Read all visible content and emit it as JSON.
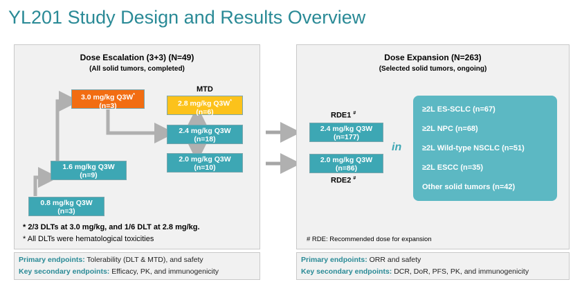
{
  "title": "YL201 Study Design and Results Overview",
  "escalation": {
    "heading": "Dose Escalation (3+3)  (N=49)",
    "subheading": "(All solid tumors, completed)",
    "mtd_label": "MTD",
    "doses": [
      {
        "dose": "0.8 mg/kg Q3W",
        "n": "(n=3)"
      },
      {
        "dose": "1.6 mg/kg Q3W",
        "n": "(n=9)"
      },
      {
        "dose": "3.0 mg/kg Q3W",
        "n": "(n=3)",
        "mark": "*"
      },
      {
        "dose": "2.8 mg/kg Q3W",
        "n": "(n=6)",
        "mark": "*"
      },
      {
        "dose": "2.4 mg/kg Q3W",
        "n": "(n=18)"
      },
      {
        "dose": "2.0 mg/kg Q3W",
        "n": "(n=10)"
      }
    ],
    "note1": "*  2/3 DLTs  at 3.0 mg/kg, and 1/6 DLT at 2.8 mg/kg.",
    "note2": "*  All DLTs  were hematological toxicities",
    "primary_label": "Primary endpoints:",
    "primary_text": "Tolerability (DLT & MTD), and safety",
    "secondary_label": "Key secondary endpoints:",
    "secondary_text": "Efficacy, PK, and immunogenicity"
  },
  "expansion": {
    "heading": "Dose Expansion (N=263)",
    "subheading": "(Selected solid tumors, ongoing)",
    "rde1_label": "RDE1",
    "rde1_mark": "#",
    "rde1": {
      "dose": "2.4 mg/kg Q3W",
      "n": "(n=177)"
    },
    "rde2": {
      "dose": "2.0 mg/kg Q3W",
      "n": "(n=86)"
    },
    "rde2_label": "RDE2",
    "rde2_mark": "#",
    "in_label": "in",
    "populations": [
      "≥2L ES-SCLC (n=67)",
      "≥2L NPC (n=68)",
      "≥2L Wild-type NSCLC (n=51)",
      "≥2L ESCC (n=35)",
      "Other solid tumors (n=42)"
    ],
    "footnote": "#  RDE:  Recommended dose for expansion",
    "primary_label": "Primary endpoints:",
    "primary_text": "ORR and safety",
    "secondary_label": "Key secondary endpoints:",
    "secondary_text": "DCR, DoR, PFS, PK, and immunogenicity"
  },
  "colors": {
    "teal": "#3da7b4",
    "orange": "#f26d12",
    "yellow": "#fcc21b",
    "title": "#2a8a96"
  }
}
